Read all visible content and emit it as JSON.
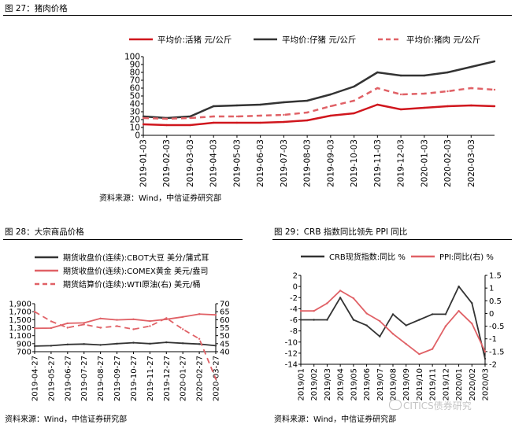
{
  "colors": {
    "dark": "#333333",
    "red": "#d0161d",
    "pink": "#e06166",
    "axis": "#000000"
  },
  "watermark": {
    "text": "CITICS债券研究",
    "icon": "wechat-icon"
  },
  "charts": [
    {
      "figure_title": "图 27：猪肉价格",
      "source": "资料来源：Wind，中信证券研究部",
      "chart_data": {
        "type": "line",
        "x": [
          "2019-01-03",
          "2019-02-03",
          "2019-03-03",
          "2019-04-03",
          "2019-05-03",
          "2019-06-03",
          "2019-07-03",
          "2019-08-03",
          "2019-09-03",
          "2019-10-03",
          "2019-11-03",
          "2019-12-03",
          "2020-01-03",
          "2020-02-03",
          "2020-03-03",
          "2020-03-31"
        ],
        "xticks": [
          "2019-01-03",
          "2019-02-03",
          "2019-03-03",
          "2019-04-03",
          "2019-05-03",
          "2019-06-03",
          "2019-07-03",
          "2019-08-03",
          "2019-09-03",
          "2019-10-03",
          "2019-11-03",
          "2019-12-03",
          "2020-01-03",
          "2020-02-03",
          "2020-03-03"
        ],
        "yticks": [
          "0",
          "10",
          "20",
          "30",
          "40",
          "50",
          "60",
          "70",
          "80",
          "90",
          "100"
        ],
        "ylim": [
          0,
          100
        ],
        "legend_position": "top",
        "series": [
          {
            "name": "平均价:活猪 元/公斤",
            "color": "#d0161d",
            "style": "solid",
            "values": [
              14,
              13,
              13,
              16,
              16,
              16,
              17,
              19,
              25,
              28,
              39,
              33,
              35,
              37,
              38,
              37
            ]
          },
          {
            "name": "平均价:仔猪 元/公斤",
            "color": "#333333",
            "style": "solid",
            "values": [
              24,
              22,
              24,
              37,
              38,
              39,
              42,
              44,
              52,
              62,
              80,
              76,
              76,
              80,
              87,
              94
            ]
          },
          {
            "name": "平均价:猪肉 元/公斤",
            "color": "#e06166",
            "style": "dash",
            "values": [
              22,
              21,
              22,
              24,
              24,
              25,
              26,
              29,
              37,
              44,
              60,
              52,
              53,
              56,
              60,
              58
            ]
          }
        ]
      }
    },
    {
      "figure_title": "图 28：大宗商品价格",
      "source": "资料来源：Wind，中信证券研究部",
      "chart_data": {
        "type": "line",
        "x": [
          "2019-04-27",
          "2019-05-27",
          "2019-06-27",
          "2019-07-27",
          "2019-08-27",
          "2019-09-27",
          "2019-10-27",
          "2019-11-27",
          "2019-12-27",
          "2020-01-27",
          "2020-02-27",
          "2020-03-27"
        ],
        "xticks": [
          "2019-04-27",
          "2019-05-27",
          "2019-06-27",
          "2019-07-27",
          "2019-08-27",
          "2019-09-27",
          "2019-10-27",
          "2019-11-27",
          "2019-12-27",
          "2020-01-27",
          "2020-02-27",
          "2020-03-27"
        ],
        "yticks": [
          "700",
          "900",
          "1,100",
          "1,300",
          "1,500",
          "1,700",
          "1,900"
        ],
        "ylim": [
          700,
          1900
        ],
        "yticks_right": [
          "40",
          "45",
          "50",
          "55",
          "60",
          "65",
          "70"
        ],
        "ylim_right": [
          40,
          70
        ],
        "legend_position": "top",
        "series": [
          {
            "name": "期货收盘价(连续):CBOT大豆 美分/蒲式耳",
            "color": "#333333",
            "style": "solid",
            "axis": "left",
            "values": [
              840,
              850,
              880,
              890,
              870,
              900,
              925,
              900,
              935,
              910,
              890,
              850
            ]
          },
          {
            "name": "期货收盘价(连续):COMEX黄金 美元/盎司",
            "color": "#e06166",
            "style": "solid",
            "axis": "left",
            "values": [
              1285,
              1290,
              1410,
              1420,
              1530,
              1495,
              1510,
              1465,
              1510,
              1570,
              1640,
              1620
            ]
          },
          {
            "name": "期货结算价(连续):WTI原油(右) 美元/桶",
            "color": "#e06166",
            "style": "dash",
            "axis": "right",
            "values": [
              65,
              59,
              55,
              57,
              55,
              56,
              54,
              56,
              61,
              54,
              48,
              23
            ]
          }
        ]
      }
    },
    {
      "figure_title": "图 29：CRB 指数同比领先 PPI 同比",
      "source": "资料来源：Wind，中信证券研究部",
      "chart_data": {
        "type": "line",
        "x": [
          "2019/01",
          "2019/02",
          "2019/03",
          "2019/04",
          "2019/05",
          "2019/06",
          "2019/07",
          "2019/08",
          "2019/09",
          "2019/10",
          "2019/11",
          "2019/12",
          "2020/01",
          "2020/02",
          "2020/03"
        ],
        "xticks": [
          "2019/01",
          "2019/02",
          "2019/03",
          "2019/04",
          "2019/05",
          "2019/06",
          "2019/07",
          "2019/08",
          "2019/09",
          "2019/10",
          "2019/11",
          "2019/12",
          "2020/01",
          "2020/02",
          "2020/03"
        ],
        "yticks": [
          "-14",
          "-12",
          "-10",
          "-8",
          "-6",
          "-4",
          "-2",
          "0",
          "2"
        ],
        "ylim": [
          -14,
          2
        ],
        "yticks_right": [
          "-2",
          "-1.5",
          "-1",
          "-0.5",
          "0",
          "0.5",
          "1",
          "1.5"
        ],
        "ylim_right": [
          -2,
          1.5
        ],
        "legend_position": "top",
        "series": [
          {
            "name": "CRB现货指数:同比 %",
            "color": "#333333",
            "style": "solid",
            "axis": "left",
            "values": [
              -6,
              -6,
              -6,
              -2,
              -6,
              -7,
              -9,
              -5,
              -7,
              -6,
              -5,
              -5,
              0,
              -3,
              -13
            ]
          },
          {
            "name": "PPI:同比(右) %",
            "color": "#e06166",
            "style": "solid",
            "axis": "right",
            "values": [
              0.1,
              0.1,
              0.4,
              0.9,
              0.6,
              0.0,
              -0.3,
              -0.8,
              -1.2,
              -1.6,
              -1.4,
              -0.5,
              0.1,
              -0.4,
              -1.5
            ]
          }
        ]
      }
    }
  ]
}
